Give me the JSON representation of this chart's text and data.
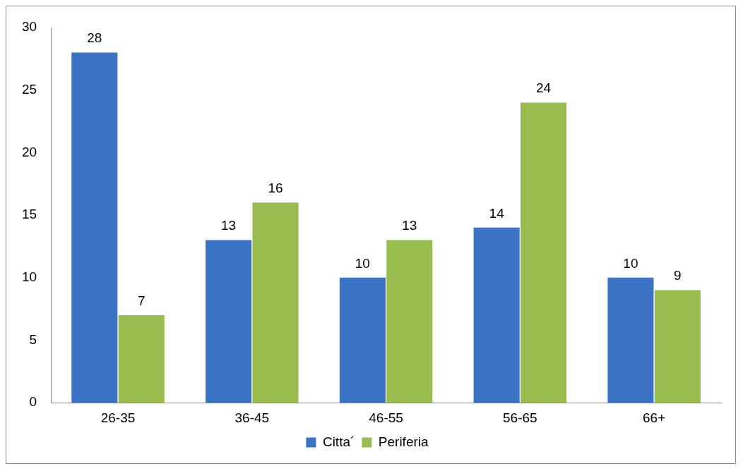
{
  "chart_data": {
    "type": "bar",
    "categories": [
      "26-35",
      "36-45",
      "46-55",
      "56-65",
      "66+"
    ],
    "series": [
      {
        "name": "Citta´",
        "color": "#3a73c4",
        "values": [
          28,
          13,
          10,
          14,
          10
        ]
      },
      {
        "name": "Periferia",
        "color": "#98bd4e",
        "values": [
          7,
          16,
          13,
          24,
          9
        ]
      }
    ],
    "ylim": [
      0,
      30
    ],
    "yticks": [
      0,
      5,
      10,
      15,
      20,
      25,
      30
    ],
    "grid": false,
    "legend": "bottom",
    "data_labels": true
  }
}
